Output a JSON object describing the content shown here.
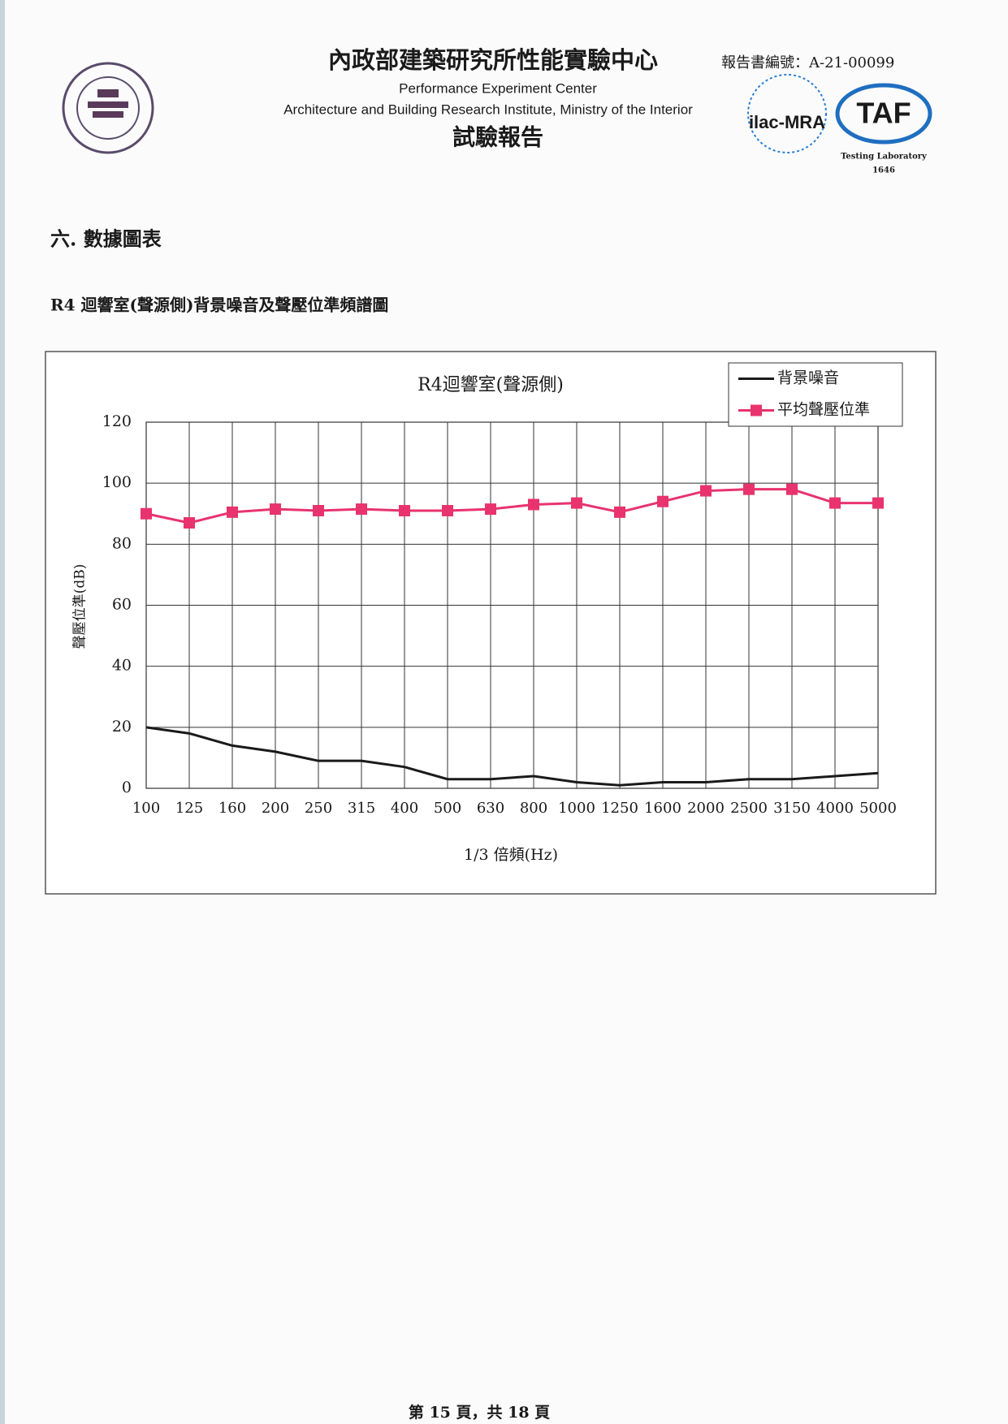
{
  "header": {
    "title_zh": "內政部建築研究所性能實驗中心",
    "report_number": "報告書編號：A-21-00099",
    "title_en_1": "Performance Experiment Center",
    "title_en_2": "Architecture and Building Research Institute, Ministry of the Interior",
    "report_type": "試驗報告",
    "ilac_logo": "ilac-MRA",
    "taf_logo": "TAF",
    "lab_label": "Testing Laboratory",
    "lab_number": "1646"
  },
  "section_title": "六. 數據圖表",
  "figure_title": "R4 迴響室(聲源側)背景噪音及聲壓位準頻譜圖",
  "chart_data": {
    "type": "line",
    "title": "R4迴響室(聲源側)",
    "x_label": "1/3 倍頻(Hz)",
    "y_label": "聲壓位準(dB)",
    "categories": [
      "100",
      "125",
      "160",
      "200",
      "250",
      "315",
      "400",
      "500",
      "630",
      "800",
      "1000",
      "1250",
      "1600",
      "2000",
      "2500",
      "3150",
      "4000",
      "5000"
    ],
    "series": [
      {
        "name": "背景噪音",
        "color": "#1a1a1a",
        "marker": "none",
        "values": [
          20,
          18,
          14,
          12,
          9,
          9,
          7,
          3,
          3,
          4,
          2,
          1,
          2,
          2,
          3,
          3,
          4,
          5
        ]
      },
      {
        "name": "平均聲壓位準",
        "color": "#e8336e",
        "marker": "square",
        "values": [
          90,
          87,
          90.5,
          91.5,
          91,
          91.5,
          91,
          91,
          91.5,
          93,
          93.5,
          90.5,
          94,
          97.5,
          98,
          98,
          93.5,
          93.5
        ]
      }
    ],
    "ylim": [
      0,
      120
    ],
    "yticks": [
      0,
      20,
      40,
      60,
      80,
      100,
      120
    ],
    "grid": true,
    "legend": "top-right"
  },
  "footer": "第 15 頁，共 18 頁"
}
